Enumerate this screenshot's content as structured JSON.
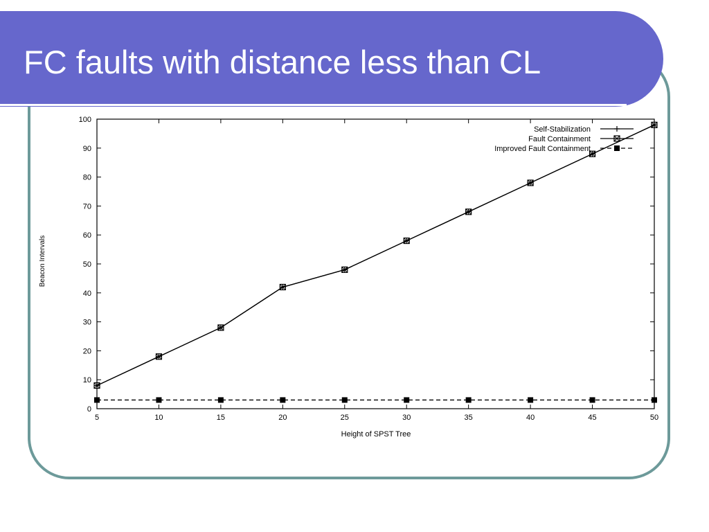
{
  "slide": {
    "title": "FC faults with distance less than CL"
  },
  "chart_data": {
    "type": "line",
    "xlabel": "Height of SPST Tree",
    "ylabel": "Beacon Intervals",
    "xlim": [
      5,
      50
    ],
    "ylim": [
      0,
      100
    ],
    "x_ticks": [
      5,
      10,
      15,
      20,
      25,
      30,
      35,
      40,
      45,
      50
    ],
    "y_ticks": [
      0,
      10,
      20,
      30,
      40,
      50,
      60,
      70,
      80,
      90,
      100
    ],
    "x": [
      5,
      10,
      15,
      20,
      25,
      30,
      35,
      40,
      45,
      50
    ],
    "series": [
      {
        "name": "Self-Stabilization",
        "values": [
          8,
          18,
          28,
          42,
          48,
          58,
          68,
          78,
          88,
          98
        ],
        "style": "solid",
        "marker": "plus"
      },
      {
        "name": "Fault Containment",
        "values": [
          8,
          18,
          28,
          42,
          48,
          58,
          68,
          78,
          88,
          98
        ],
        "style": "solid",
        "marker": "x-square"
      },
      {
        "name": "Improved Fault Containment",
        "values": [
          3,
          3,
          3,
          3,
          3,
          3,
          3,
          3,
          3,
          3
        ],
        "style": "dashed",
        "marker": "square"
      }
    ],
    "legend_position": "top-right",
    "grid": false,
    "colors": {
      "line": "#000000",
      "title_bar": "#6667cc",
      "frame": "#6d9a9a"
    }
  }
}
